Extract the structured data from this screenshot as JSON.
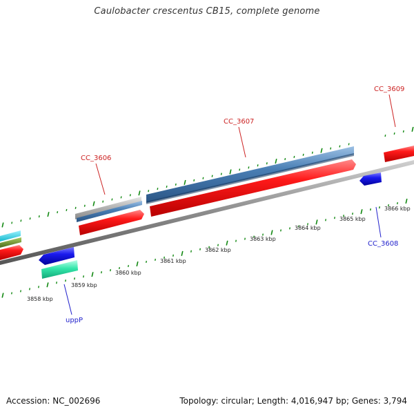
{
  "title": "Caulobacter crescentus CB15, complete genome",
  "footer": {
    "accession": "Accession: NC_002696",
    "summary": "Topology: circular; Length: 4,016,947 bp; Genes: 3,794"
  },
  "ruler_ticks": [
    {
      "label": "3858 kbp"
    },
    {
      "label": "3859 kbp"
    },
    {
      "label": "3860 kbp"
    },
    {
      "label": "3861 kbp"
    },
    {
      "label": "3862 kbp"
    },
    {
      "label": "3863 kbp"
    },
    {
      "label": "3864 kbp"
    },
    {
      "label": "3865 kbp"
    },
    {
      "label": "3866 kbp"
    }
  ],
  "gene_labels": [
    {
      "name": "CC_3606",
      "strand": "forward"
    },
    {
      "name": "CC_3607",
      "strand": "forward"
    },
    {
      "name": "CC_3609",
      "strand": "forward"
    },
    {
      "name": "CC_3608",
      "strand": "reverse"
    },
    {
      "name": "uppP",
      "strand": "reverse"
    }
  ],
  "colors": {
    "forward_cds": "#ee1111",
    "reverse_cds": "#1a1aee",
    "blast_blue": "#4a7fb5",
    "blast_gray": "#a8a8a8",
    "teal": "#33ddaa",
    "cyan": "#22ccdd",
    "olive": "#6a8f2a",
    "tick_green": "#118811",
    "backbone": "#888888",
    "forward_label": "#cc2222",
    "reverse_label": "#2222cc"
  }
}
